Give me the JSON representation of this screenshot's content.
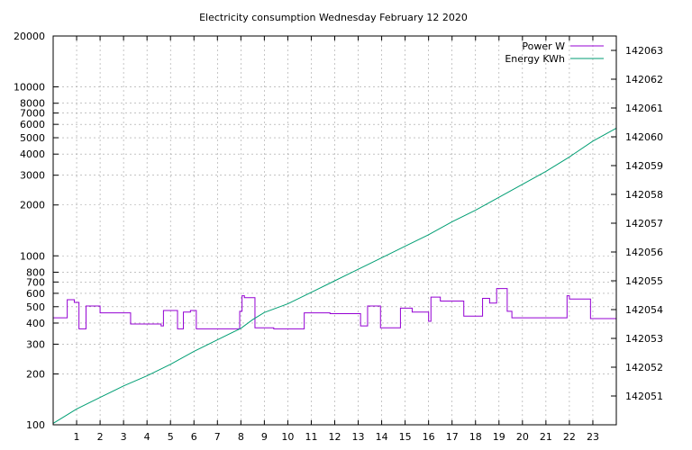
{
  "chart_data": {
    "type": "line",
    "title": "Electricity consumption Wednesday February 12 2020",
    "x_ticks": [
      "1",
      "2",
      "3",
      "4",
      "5",
      "6",
      "7",
      "8",
      "9",
      "10",
      "11",
      "12",
      "13",
      "14",
      "15",
      "16",
      "17",
      "18",
      "19",
      "20",
      "21",
      "22",
      "23"
    ],
    "xlim": [
      0,
      24
    ],
    "y_left": {
      "scale": "log",
      "ylim": [
        100,
        20000
      ],
      "ticks": [
        100,
        200,
        300,
        400,
        500,
        600,
        700,
        800,
        1000,
        2000,
        3000,
        4000,
        5000,
        6000,
        7000,
        8000,
        10000,
        20000
      ],
      "tick_labels": [
        "100",
        "200",
        "300",
        "400",
        "500",
        "600",
        "700",
        "800",
        "1000",
        "2000",
        "3000",
        "4000",
        "5000",
        "6000",
        "7000",
        "8000",
        "10000",
        "20000"
      ]
    },
    "y_right": {
      "scale": "linear",
      "ylim": [
        142050,
        142063.5
      ],
      "ticks": [
        142051,
        142052,
        142053,
        142054,
        142055,
        142056,
        142057,
        142058,
        142059,
        142060,
        142061,
        142062,
        142063
      ],
      "tick_labels": [
        "142051",
        "142052",
        "142053",
        "142054",
        "142055",
        "142056",
        "142057",
        "142058",
        "142059",
        "142060",
        "142061",
        "142062",
        "142063"
      ]
    },
    "grid": true,
    "legend_position": "top-right",
    "series": [
      {
        "name": "Power W",
        "axis": "left",
        "color": "#9400d3",
        "step": true,
        "points": [
          [
            0,
            430
          ],
          [
            0.6,
            550
          ],
          [
            0.9,
            530
          ],
          [
            1.1,
            370
          ],
          [
            1.4,
            505
          ],
          [
            2.0,
            460
          ],
          [
            3.3,
            395
          ],
          [
            4.6,
            385
          ],
          [
            4.7,
            475
          ],
          [
            5.3,
            370
          ],
          [
            5.55,
            465
          ],
          [
            5.85,
            475
          ],
          [
            6.1,
            370
          ],
          [
            7.95,
            470
          ],
          [
            8.05,
            580
          ],
          [
            8.15,
            565
          ],
          [
            8.6,
            375
          ],
          [
            9.4,
            370
          ],
          [
            10.7,
            460
          ],
          [
            11.8,
            455
          ],
          [
            13.1,
            385
          ],
          [
            13.4,
            505
          ],
          [
            13.95,
            375
          ],
          [
            14.8,
            490
          ],
          [
            15.3,
            465
          ],
          [
            16.0,
            410
          ],
          [
            16.1,
            570
          ],
          [
            16.5,
            540
          ],
          [
            17.5,
            440
          ],
          [
            18.3,
            560
          ],
          [
            18.6,
            525
          ],
          [
            18.9,
            640
          ],
          [
            19.35,
            470
          ],
          [
            19.55,
            430
          ],
          [
            21.9,
            580
          ],
          [
            22.0,
            555
          ],
          [
            22.9,
            425
          ],
          [
            24,
            425
          ]
        ]
      },
      {
        "name": "Energy KWh",
        "axis": "right",
        "color": "#009e73",
        "step": false,
        "points": [
          [
            0,
            142050.05
          ],
          [
            1,
            142050.55
          ],
          [
            2,
            142050.95
          ],
          [
            3,
            142051.35
          ],
          [
            4,
            142051.7
          ],
          [
            5,
            142052.1
          ],
          [
            6,
            142052.55
          ],
          [
            7,
            142052.95
          ],
          [
            8,
            142053.35
          ],
          [
            8.5,
            142053.65
          ],
          [
            9,
            142053.9
          ],
          [
            10,
            142054.2
          ],
          [
            11,
            142054.6
          ],
          [
            12,
            142055.0
          ],
          [
            13,
            142055.4
          ],
          [
            14,
            142055.8
          ],
          [
            15,
            142056.2
          ],
          [
            16,
            142056.6
          ],
          [
            17,
            142057.05
          ],
          [
            18,
            142057.45
          ],
          [
            19,
            142057.9
          ],
          [
            20,
            142058.35
          ],
          [
            21,
            142058.8
          ],
          [
            22,
            142059.3
          ],
          [
            23,
            142059.85
          ],
          [
            24,
            142060.3
          ]
        ]
      }
    ]
  }
}
